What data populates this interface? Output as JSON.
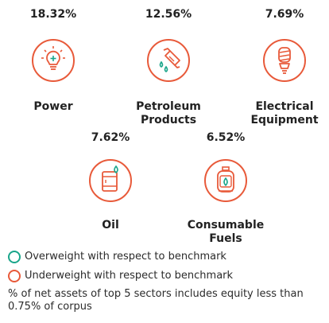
{
  "colors": {
    "underweight": "#e85a3a",
    "overweight": "#1aa58a",
    "text": "#222222"
  },
  "sectors": [
    {
      "percent": "18.32%",
      "name": "Power",
      "icon": "lightbulb-icon",
      "status": "underweight"
    },
    {
      "percent": "12.56%",
      "name": "Petroleum\nProducts",
      "icon": "fuel-nozzle-icon",
      "status": "underweight"
    },
    {
      "percent": "7.69%",
      "name": "Electrical\nEquipment",
      "icon": "cfl-bulb-icon",
      "status": "underweight"
    },
    {
      "percent": "7.62%",
      "name": "Oil",
      "icon": "oil-barrel-icon",
      "status": "underweight"
    },
    {
      "percent": "6.52%",
      "name": "Consumable\nFuels",
      "icon": "gas-cylinder-icon",
      "status": "underweight"
    }
  ],
  "legend": {
    "overweight": "Overweight with respect to benchmark",
    "underweight": "Underweight with respect to benchmark"
  },
  "footnote": "% of net assets of top 5 sectors includes equity less than 0.75% of corpus"
}
